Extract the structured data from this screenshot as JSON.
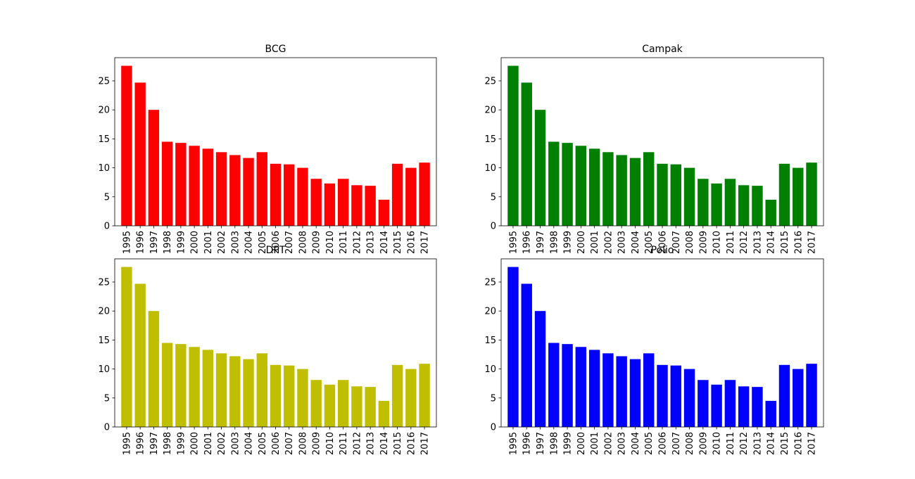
{
  "chart_data": [
    {
      "type": "bar",
      "title": "BCG",
      "color": "#ff0000",
      "xlabel": "",
      "ylabel": "",
      "ylim": [
        0,
        29
      ],
      "yticks": [
        0,
        5,
        10,
        15,
        20,
        25
      ],
      "grid": false,
      "categories": [
        "1995",
        "1996",
        "1997",
        "1998",
        "1999",
        "2000",
        "2001",
        "2002",
        "2003",
        "2004",
        "2005",
        "2006",
        "2007",
        "2008",
        "2009",
        "2010",
        "2011",
        "2012",
        "2013",
        "2014",
        "2015",
        "2016",
        "2017"
      ],
      "values": [
        27.6,
        24.7,
        20.0,
        14.5,
        14.3,
        13.8,
        13.3,
        12.7,
        12.2,
        11.7,
        12.7,
        10.7,
        10.6,
        10.0,
        8.1,
        7.3,
        8.1,
        7.0,
        6.9,
        4.5,
        10.7,
        10.0,
        10.9
      ]
    },
    {
      "type": "bar",
      "title": "Campak",
      "color": "#008000",
      "xlabel": "",
      "ylabel": "",
      "ylim": [
        0,
        29
      ],
      "yticks": [
        0,
        5,
        10,
        15,
        20,
        25
      ],
      "grid": false,
      "categories": [
        "1995",
        "1996",
        "1997",
        "1998",
        "1999",
        "2000",
        "2001",
        "2002",
        "2003",
        "2004",
        "2005",
        "2006",
        "2007",
        "2008",
        "2009",
        "2010",
        "2011",
        "2012",
        "2013",
        "2014",
        "2015",
        "2016",
        "2017"
      ],
      "values": [
        27.6,
        24.7,
        20.0,
        14.5,
        14.3,
        13.8,
        13.3,
        12.7,
        12.2,
        11.7,
        12.7,
        10.7,
        10.6,
        10.0,
        8.1,
        7.3,
        8.1,
        7.0,
        6.9,
        4.5,
        10.7,
        10.0,
        10.9
      ]
    },
    {
      "type": "bar",
      "title": "DPT",
      "color": "#bfbf00",
      "xlabel": "",
      "ylabel": "",
      "ylim": [
        0,
        29
      ],
      "yticks": [
        0,
        5,
        10,
        15,
        20,
        25
      ],
      "grid": false,
      "categories": [
        "1995",
        "1996",
        "1997",
        "1998",
        "1999",
        "2000",
        "2001",
        "2002",
        "2003",
        "2004",
        "2005",
        "2006",
        "2007",
        "2008",
        "2009",
        "2010",
        "2011",
        "2012",
        "2013",
        "2014",
        "2015",
        "2016",
        "2017"
      ],
      "values": [
        27.6,
        24.7,
        20.0,
        14.5,
        14.3,
        13.8,
        13.3,
        12.7,
        12.2,
        11.7,
        12.7,
        10.7,
        10.6,
        10.0,
        8.1,
        7.3,
        8.1,
        7.0,
        6.9,
        4.5,
        10.7,
        10.0,
        10.9
      ]
    },
    {
      "type": "bar",
      "title": "Polio",
      "color": "#0000ff",
      "xlabel": "",
      "ylabel": "",
      "ylim": [
        0,
        29
      ],
      "yticks": [
        0,
        5,
        10,
        15,
        20,
        25
      ],
      "grid": false,
      "categories": [
        "1995",
        "1996",
        "1997",
        "1998",
        "1999",
        "2000",
        "2001",
        "2002",
        "2003",
        "2004",
        "2005",
        "2006",
        "2007",
        "2008",
        "2009",
        "2010",
        "2011",
        "2012",
        "2013",
        "2014",
        "2015",
        "2016",
        "2017"
      ],
      "values": [
        27.6,
        24.7,
        20.0,
        14.5,
        14.3,
        13.8,
        13.3,
        12.7,
        12.2,
        11.7,
        12.7,
        10.7,
        10.6,
        10.0,
        8.1,
        7.3,
        8.1,
        7.0,
        6.9,
        4.5,
        10.7,
        10.0,
        10.9
      ]
    }
  ]
}
